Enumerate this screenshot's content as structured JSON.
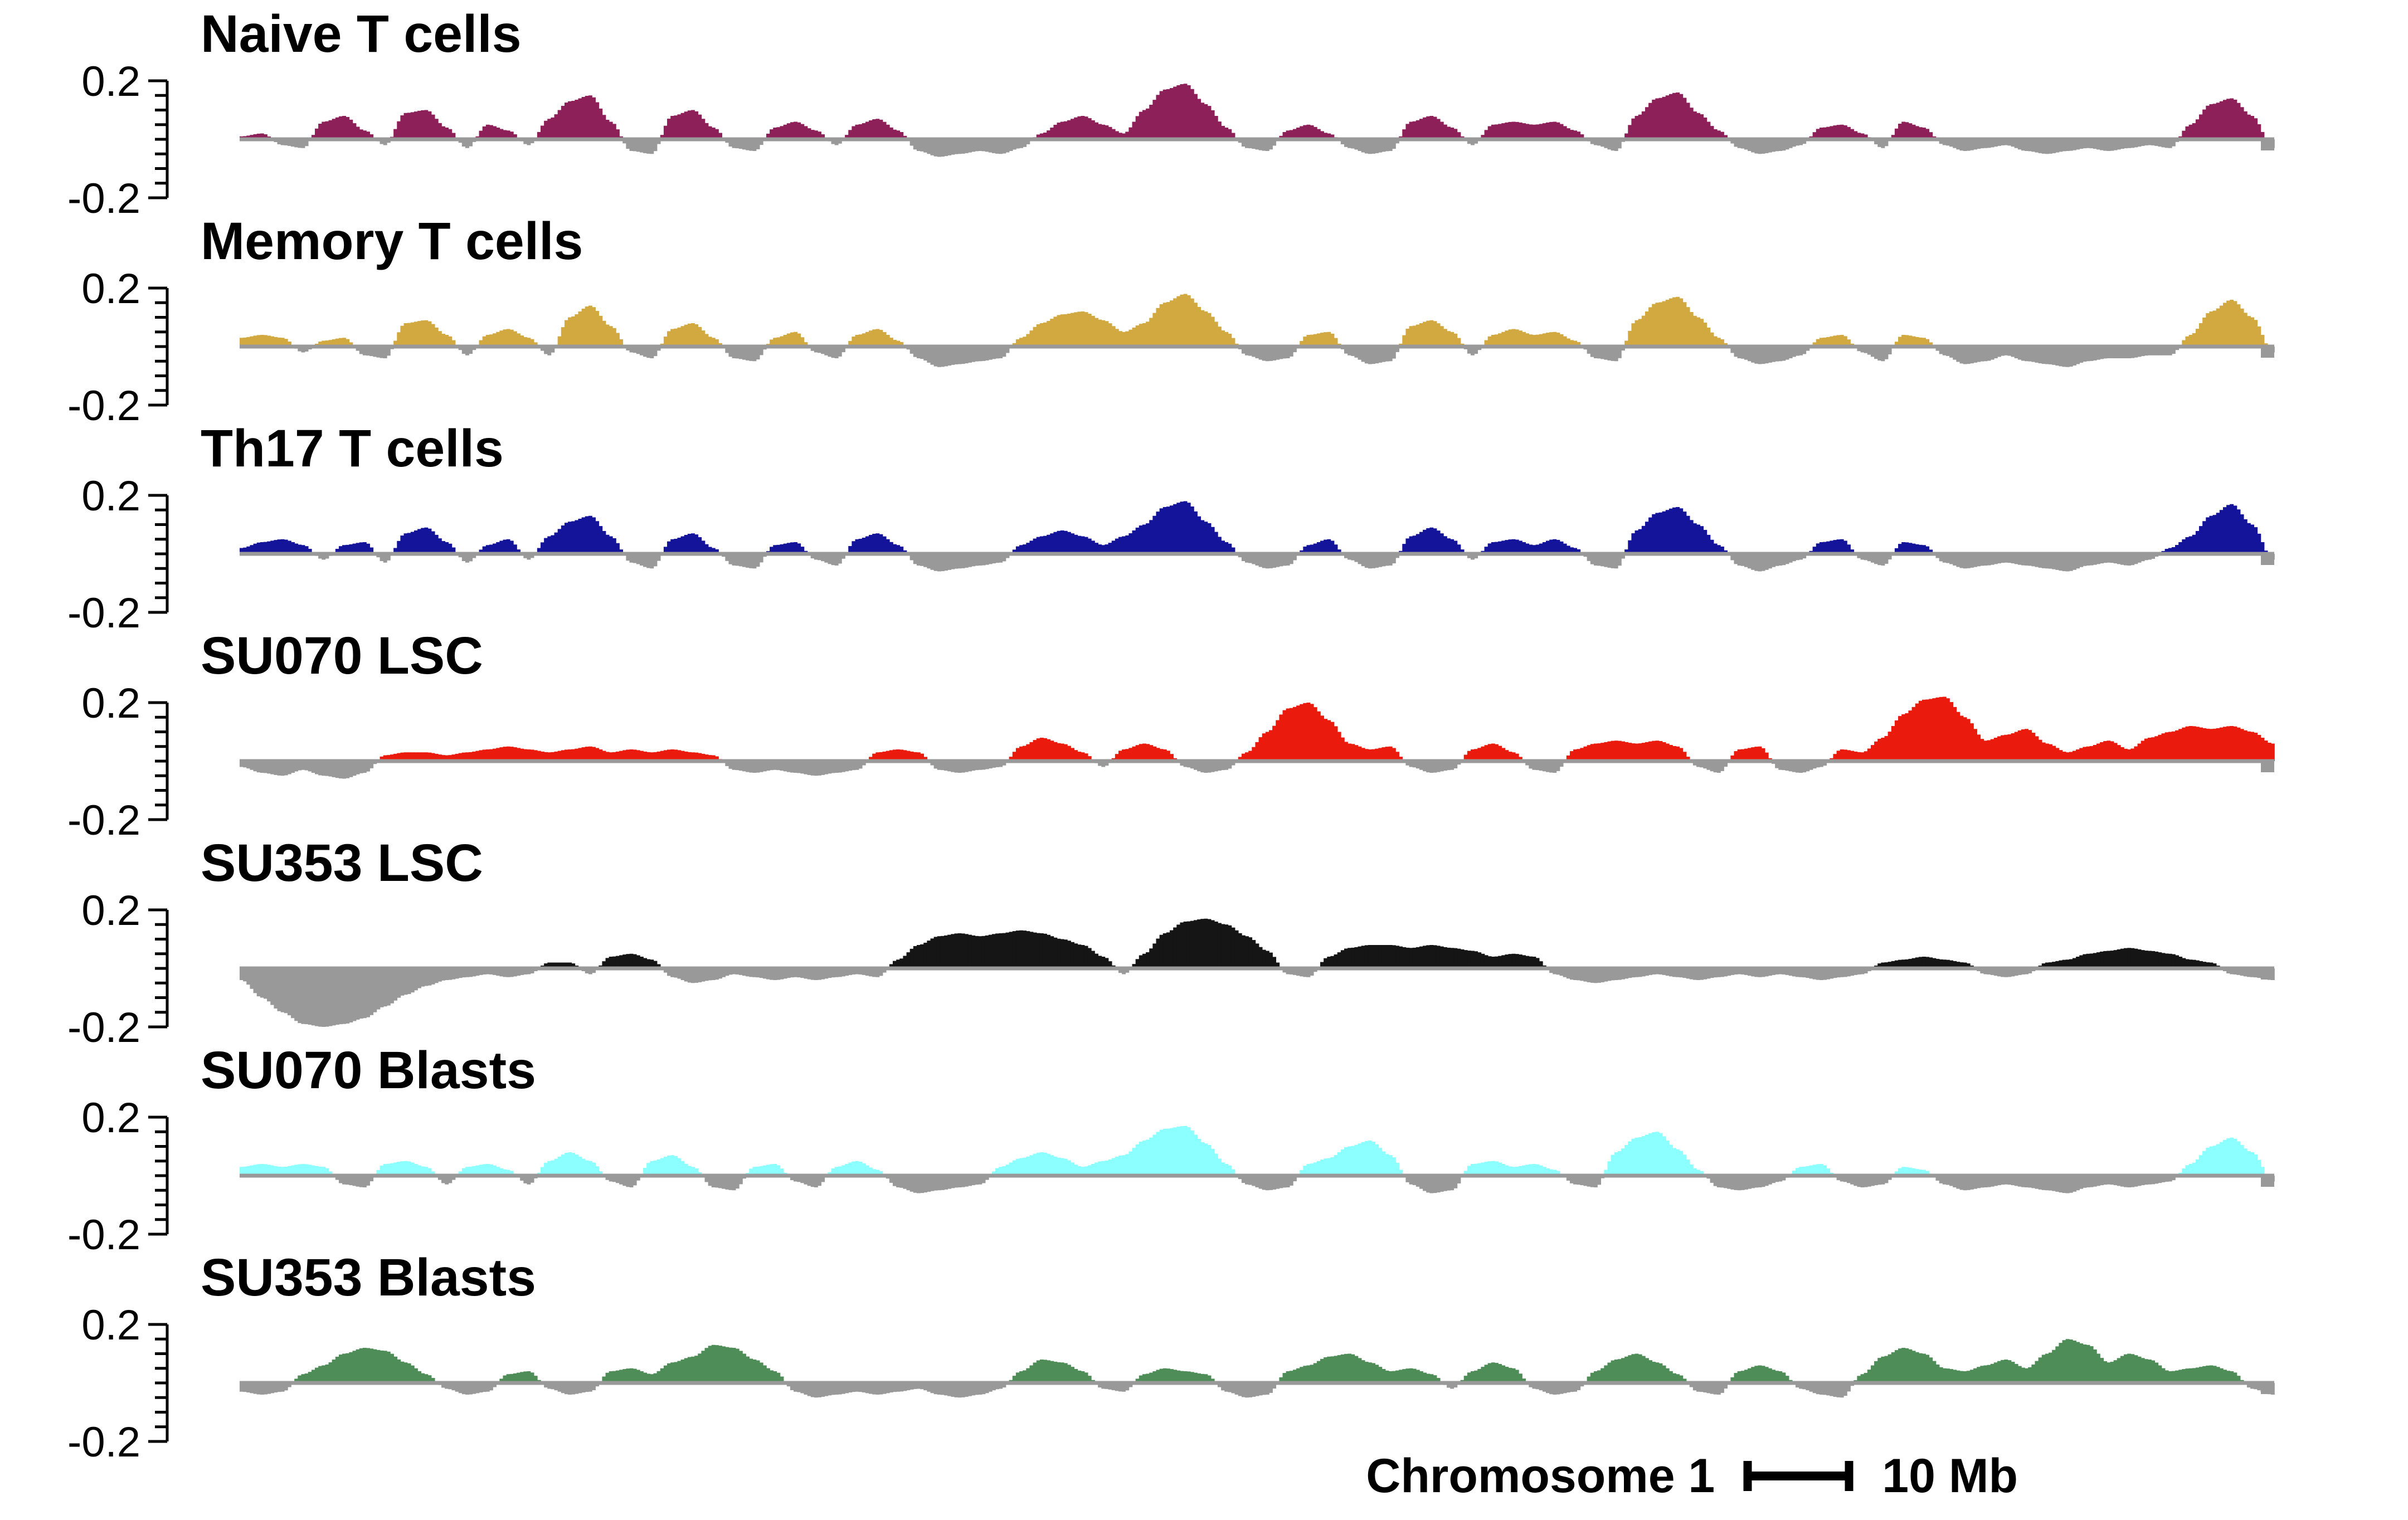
{
  "figure": {
    "xlabel": "Chromosome 1",
    "scale_bar_label": "10 Mb",
    "y_axis": {
      "top_label": "0.2",
      "bottom_label": "-0.2"
    },
    "background_color": "#ffffff",
    "negative_color": "#999999",
    "baseline_color": "#999999",
    "axis_color": "#000000"
  },
  "chart_data": {
    "type": "area",
    "title": "",
    "xlabel": "Chromosome 1",
    "ylabel": "",
    "ylim": [
      -0.2,
      0.2
    ],
    "y_tick_labels_shown": [
      "0.2",
      "-0.2"
    ],
    "scale_bar": "10 Mb",
    "grid": false,
    "legend_position": "none",
    "x_axis_note": "genomic position along Chromosome 1, shared by all tracks",
    "tracks": [
      {
        "name": "Naive T cells",
        "color": "#8E2059",
        "values": [
          0.01,
          0.02,
          -0.02,
          -0.03,
          0.06,
          0.08,
          0.03,
          -0.02,
          0.09,
          0.1,
          0.04,
          -0.03,
          0.05,
          0.03,
          -0.02,
          0.07,
          0.13,
          0.15,
          0.06,
          -0.04,
          -0.05,
          0.08,
          0.1,
          0.04,
          -0.03,
          -0.04,
          0.04,
          0.06,
          0.03,
          -0.02,
          0.05,
          0.07,
          0.03,
          -0.04,
          -0.06,
          -0.05,
          -0.04,
          -0.05,
          -0.03,
          0.02,
          0.06,
          0.08,
          0.05,
          0.02,
          0.1,
          0.17,
          0.19,
          0.12,
          0.04,
          -0.03,
          -0.04,
          0.03,
          0.05,
          0.02,
          -0.03,
          -0.05,
          -0.04,
          0.06,
          0.08,
          0.04,
          -0.02,
          0.05,
          0.06,
          0.05,
          0.06,
          0.03,
          -0.02,
          -0.04,
          0.08,
          0.14,
          0.16,
          0.09,
          0.03,
          -0.03,
          -0.05,
          -0.04,
          -0.02,
          0.04,
          0.05,
          0.02,
          -0.03,
          0.06,
          0.04,
          -0.02,
          -0.04,
          -0.03,
          -0.02,
          -0.04,
          -0.05,
          -0.04,
          -0.03,
          -0.04,
          -0.03,
          -0.02,
          -0.03,
          0.05,
          0.12,
          0.14,
          0.08,
          -0.03
        ]
      },
      {
        "name": "Memory T cells",
        "color": "#D2A940",
        "values": [
          0.03,
          0.04,
          0.03,
          -0.02,
          0.02,
          0.03,
          -0.03,
          -0.04,
          0.08,
          0.09,
          0.04,
          -0.03,
          0.04,
          0.06,
          0.03,
          -0.03,
          0.1,
          0.14,
          0.07,
          -0.02,
          -0.04,
          0.06,
          0.08,
          0.03,
          -0.04,
          -0.05,
          0.03,
          0.05,
          -0.02,
          -0.04,
          0.04,
          0.06,
          0.02,
          -0.04,
          -0.07,
          -0.06,
          -0.05,
          -0.04,
          0.03,
          0.08,
          0.11,
          0.12,
          0.09,
          0.05,
          0.08,
          0.15,
          0.18,
          0.12,
          0.05,
          -0.03,
          -0.05,
          -0.04,
          0.04,
          0.05,
          -0.03,
          -0.06,
          -0.05,
          0.07,
          0.09,
          0.05,
          -0.03,
          0.04,
          0.06,
          0.04,
          0.05,
          0.02,
          -0.04,
          -0.05,
          0.09,
          0.15,
          0.17,
          0.1,
          0.03,
          -0.04,
          -0.06,
          -0.05,
          -0.03,
          0.03,
          0.04,
          -0.02,
          -0.05,
          0.04,
          0.03,
          -0.03,
          -0.06,
          -0.05,
          -0.03,
          -0.05,
          -0.06,
          -0.07,
          -0.05,
          -0.04,
          -0.04,
          -0.03,
          -0.03,
          0.04,
          0.12,
          0.16,
          0.1,
          -0.02
        ]
      },
      {
        "name": "Th17 T cells",
        "color": "#14149B",
        "values": [
          0.02,
          0.04,
          0.05,
          0.03,
          -0.02,
          0.03,
          0.04,
          -0.03,
          0.07,
          0.09,
          0.04,
          -0.03,
          0.03,
          0.05,
          -0.02,
          0.06,
          0.11,
          0.13,
          0.06,
          -0.03,
          -0.05,
          0.05,
          0.07,
          0.02,
          -0.04,
          -0.05,
          0.03,
          0.04,
          -0.02,
          -0.04,
          0.05,
          0.07,
          0.03,
          -0.04,
          -0.06,
          -0.05,
          -0.04,
          -0.03,
          0.03,
          0.06,
          0.08,
          0.06,
          0.03,
          0.06,
          0.1,
          0.16,
          0.18,
          0.11,
          0.04,
          -0.03,
          -0.05,
          -0.04,
          0.03,
          0.05,
          -0.02,
          -0.05,
          -0.04,
          0.06,
          0.09,
          0.05,
          -0.02,
          0.04,
          0.05,
          0.03,
          0.05,
          0.02,
          -0.04,
          -0.05,
          0.08,
          0.14,
          0.16,
          0.1,
          0.03,
          -0.04,
          -0.06,
          -0.04,
          -0.02,
          0.04,
          0.05,
          -0.02,
          -0.04,
          0.04,
          0.03,
          -0.03,
          -0.05,
          -0.04,
          -0.03,
          -0.04,
          -0.05,
          -0.06,
          -0.04,
          -0.03,
          -0.04,
          -0.02,
          0.02,
          0.06,
          0.13,
          0.17,
          0.1,
          -0.02
        ]
      },
      {
        "name": "SU070 LSC",
        "color": "#EA1B0C",
        "values": [
          -0.02,
          -0.04,
          -0.05,
          -0.03,
          -0.05,
          -0.06,
          -0.04,
          0.02,
          0.03,
          0.03,
          0.02,
          0.03,
          0.04,
          0.05,
          0.04,
          0.03,
          0.04,
          0.05,
          0.03,
          0.04,
          0.03,
          0.04,
          0.03,
          0.02,
          -0.03,
          -0.04,
          -0.03,
          -0.04,
          -0.05,
          -0.04,
          -0.03,
          0.03,
          0.04,
          0.03,
          -0.03,
          -0.04,
          -0.03,
          -0.02,
          0.05,
          0.08,
          0.06,
          0.03,
          -0.02,
          0.04,
          0.06,
          0.04,
          -0.02,
          -0.04,
          -0.03,
          0.03,
          0.1,
          0.18,
          0.2,
          0.14,
          0.06,
          0.04,
          0.05,
          -0.02,
          -0.04,
          -0.03,
          0.04,
          0.06,
          0.03,
          -0.03,
          -0.04,
          0.04,
          0.06,
          0.07,
          0.06,
          0.07,
          0.05,
          -0.02,
          -0.04,
          0.04,
          0.05,
          -0.03,
          -0.04,
          -0.02,
          0.04,
          0.03,
          0.08,
          0.16,
          0.21,
          0.22,
          0.15,
          0.07,
          0.09,
          0.11,
          0.06,
          0.03,
          0.05,
          0.07,
          0.04,
          0.08,
          0.1,
          0.12,
          0.11,
          0.12,
          0.1,
          0.06
        ]
      },
      {
        "name": "SU353 LSC",
        "color": "#151515",
        "values": [
          -0.04,
          -0.1,
          -0.15,
          -0.19,
          -0.2,
          -0.19,
          -0.17,
          -0.13,
          -0.09,
          -0.06,
          -0.04,
          -0.03,
          -0.02,
          -0.03,
          -0.02,
          0.02,
          0.02,
          -0.02,
          0.04,
          0.05,
          0.03,
          -0.03,
          -0.05,
          -0.04,
          -0.02,
          -0.03,
          -0.04,
          -0.03,
          -0.04,
          -0.03,
          -0.02,
          -0.03,
          0.03,
          0.08,
          0.11,
          0.12,
          0.11,
          0.12,
          0.13,
          0.12,
          0.1,
          0.08,
          0.04,
          -0.02,
          0.05,
          0.12,
          0.16,
          0.17,
          0.15,
          0.11,
          0.06,
          -0.02,
          -0.03,
          0.04,
          0.07,
          0.08,
          0.08,
          0.07,
          0.08,
          0.07,
          0.06,
          0.04,
          0.05,
          0.04,
          -0.02,
          -0.04,
          -0.05,
          -0.04,
          -0.03,
          -0.02,
          -0.03,
          -0.04,
          -0.03,
          -0.02,
          -0.03,
          -0.02,
          -0.03,
          -0.04,
          -0.03,
          -0.02,
          0.02,
          0.03,
          0.04,
          0.03,
          0.02,
          -0.02,
          -0.03,
          -0.02,
          0.02,
          0.03,
          0.05,
          0.06,
          0.07,
          0.06,
          0.05,
          0.03,
          0.02,
          -0.02,
          -0.03,
          -0.04
        ]
      },
      {
        "name": "SU070 Blasts",
        "color": "#8CFFFF",
        "values": [
          0.03,
          0.04,
          0.03,
          0.04,
          0.03,
          -0.03,
          -0.04,
          0.04,
          0.05,
          0.03,
          -0.03,
          0.03,
          0.04,
          0.02,
          -0.03,
          0.05,
          0.08,
          0.05,
          -0.02,
          -0.04,
          0.05,
          0.07,
          0.03,
          -0.04,
          -0.05,
          0.03,
          0.04,
          -0.02,
          -0.04,
          0.03,
          0.05,
          0.02,
          -0.04,
          -0.06,
          -0.05,
          -0.04,
          -0.03,
          0.03,
          0.06,
          0.08,
          0.06,
          0.03,
          0.05,
          0.07,
          0.12,
          0.16,
          0.17,
          0.11,
          0.04,
          -0.03,
          -0.05,
          -0.04,
          0.04,
          0.06,
          0.1,
          0.12,
          0.07,
          -0.03,
          -0.06,
          -0.05,
          0.04,
          0.05,
          0.03,
          0.04,
          0.02,
          -0.03,
          -0.04,
          0.08,
          0.13,
          0.15,
          0.09,
          0.02,
          -0.04,
          -0.05,
          -0.04,
          -0.02,
          0.03,
          0.04,
          -0.02,
          -0.04,
          -0.03,
          0.03,
          0.02,
          -0.03,
          -0.05,
          -0.04,
          -0.03,
          -0.04,
          -0.05,
          -0.06,
          -0.04,
          -0.03,
          -0.04,
          -0.03,
          -0.02,
          0.04,
          0.1,
          0.13,
          0.08,
          -0.02
        ]
      },
      {
        "name": "SU353 Blasts",
        "color": "#4F8D58",
        "values": [
          -0.03,
          -0.04,
          -0.03,
          0.03,
          0.06,
          0.1,
          0.12,
          0.11,
          0.07,
          0.03,
          -0.02,
          -0.04,
          -0.03,
          0.03,
          0.04,
          -0.02,
          -0.04,
          -0.03,
          0.04,
          0.05,
          0.03,
          0.07,
          0.09,
          0.13,
          0.12,
          0.08,
          0.04,
          -0.03,
          -0.05,
          -0.04,
          -0.03,
          -0.04,
          -0.03,
          -0.02,
          -0.04,
          -0.05,
          -0.04,
          -0.02,
          0.04,
          0.08,
          0.07,
          0.04,
          -0.02,
          -0.03,
          0.03,
          0.05,
          0.04,
          0.03,
          -0.03,
          -0.05,
          -0.04,
          0.04,
          0.06,
          0.09,
          0.1,
          0.07,
          0.04,
          0.05,
          0.03,
          -0.02,
          0.04,
          0.07,
          0.05,
          -0.02,
          -0.04,
          -0.03,
          0.04,
          0.08,
          0.1,
          0.07,
          0.03,
          -0.03,
          -0.04,
          0.04,
          0.06,
          0.04,
          -0.02,
          -0.04,
          -0.05,
          0.03,
          0.09,
          0.12,
          0.1,
          0.05,
          0.04,
          0.06,
          0.08,
          0.05,
          0.1,
          0.15,
          0.13,
          0.07,
          0.1,
          0.08,
          0.04,
          0.05,
          0.06,
          0.04,
          -0.02,
          -0.04
        ]
      }
    ]
  }
}
